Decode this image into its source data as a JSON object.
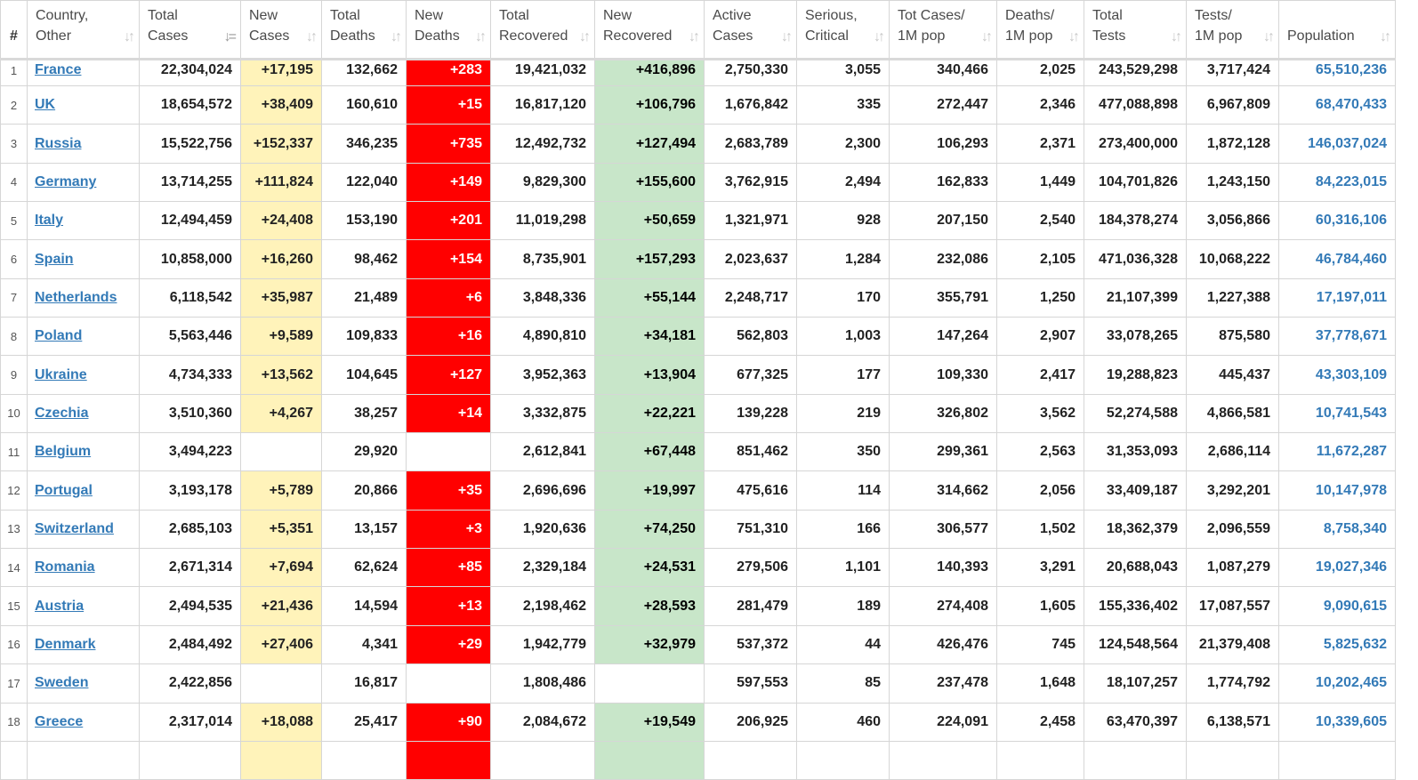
{
  "columns": [
    {
      "l1": "",
      "l2": "#"
    },
    {
      "l1": "Country,",
      "l2": "Other"
    },
    {
      "l1": "Total",
      "l2": "Cases"
    },
    {
      "l1": "New",
      "l2": "Cases"
    },
    {
      "l1": "Total",
      "l2": "Deaths"
    },
    {
      "l1": "New",
      "l2": "Deaths"
    },
    {
      "l1": "Total",
      "l2": "Recovered"
    },
    {
      "l1": "New",
      "l2": "Recovered"
    },
    {
      "l1": "Active",
      "l2": "Cases"
    },
    {
      "l1": "Serious,",
      "l2": "Critical"
    },
    {
      "l1": "Tot Cases/",
      "l2": "1M pop"
    },
    {
      "l1": "Deaths/",
      "l2": "1M pop"
    },
    {
      "l1": "Total",
      "l2": "Tests"
    },
    {
      "l1": "Tests/",
      "l2": "1M pop"
    },
    {
      "l1": "",
      "l2": "Population"
    }
  ],
  "sort_icons": {
    "default": "↓↑",
    "active": "↓="
  },
  "colors": {
    "new_cases_bg": "#fff3ba",
    "new_deaths_bg": "#ff0000",
    "new_recovered_bg": "#c8e6c9",
    "link": "#337ab7"
  },
  "rows": [
    {
      "rank": "1",
      "country": "France",
      "total_cases": "22,304,024",
      "new_cases": "+17,195",
      "total_deaths": "132,662",
      "new_deaths": "+283",
      "total_recovered": "19,421,032",
      "new_recovered": "+416,896",
      "active_cases": "2,750,330",
      "serious": "3,055",
      "cases_per_1m": "340,466",
      "deaths_per_1m": "2,025",
      "total_tests": "243,529,298",
      "tests_per_1m": "3,717,424",
      "population": "65,510,236"
    },
    {
      "rank": "2",
      "country": "UK",
      "total_cases": "18,654,572",
      "new_cases": "+38,409",
      "total_deaths": "160,610",
      "new_deaths": "+15",
      "total_recovered": "16,817,120",
      "new_recovered": "+106,796",
      "active_cases": "1,676,842",
      "serious": "335",
      "cases_per_1m": "272,447",
      "deaths_per_1m": "2,346",
      "total_tests": "477,088,898",
      "tests_per_1m": "6,967,809",
      "population": "68,470,433"
    },
    {
      "rank": "3",
      "country": "Russia",
      "total_cases": "15,522,756",
      "new_cases": "+152,337",
      "total_deaths": "346,235",
      "new_deaths": "+735",
      "total_recovered": "12,492,732",
      "new_recovered": "+127,494",
      "active_cases": "2,683,789",
      "serious": "2,300",
      "cases_per_1m": "106,293",
      "deaths_per_1m": "2,371",
      "total_tests": "273,400,000",
      "tests_per_1m": "1,872,128",
      "population": "146,037,024"
    },
    {
      "rank": "4",
      "country": "Germany",
      "total_cases": "13,714,255",
      "new_cases": "+111,824",
      "total_deaths": "122,040",
      "new_deaths": "+149",
      "total_recovered": "9,829,300",
      "new_recovered": "+155,600",
      "active_cases": "3,762,915",
      "serious": "2,494",
      "cases_per_1m": "162,833",
      "deaths_per_1m": "1,449",
      "total_tests": "104,701,826",
      "tests_per_1m": "1,243,150",
      "population": "84,223,015"
    },
    {
      "rank": "5",
      "country": "Italy",
      "total_cases": "12,494,459",
      "new_cases": "+24,408",
      "total_deaths": "153,190",
      "new_deaths": "+201",
      "total_recovered": "11,019,298",
      "new_recovered": "+50,659",
      "active_cases": "1,321,971",
      "serious": "928",
      "cases_per_1m": "207,150",
      "deaths_per_1m": "2,540",
      "total_tests": "184,378,274",
      "tests_per_1m": "3,056,866",
      "population": "60,316,106"
    },
    {
      "rank": "6",
      "country": "Spain",
      "total_cases": "10,858,000",
      "new_cases": "+16,260",
      "total_deaths": "98,462",
      "new_deaths": "+154",
      "total_recovered": "8,735,901",
      "new_recovered": "+157,293",
      "active_cases": "2,023,637",
      "serious": "1,284",
      "cases_per_1m": "232,086",
      "deaths_per_1m": "2,105",
      "total_tests": "471,036,328",
      "tests_per_1m": "10,068,222",
      "population": "46,784,460"
    },
    {
      "rank": "7",
      "country": "Netherlands",
      "total_cases": "6,118,542",
      "new_cases": "+35,987",
      "total_deaths": "21,489",
      "new_deaths": "+6",
      "total_recovered": "3,848,336",
      "new_recovered": "+55,144",
      "active_cases": "2,248,717",
      "serious": "170",
      "cases_per_1m": "355,791",
      "deaths_per_1m": "1,250",
      "total_tests": "21,107,399",
      "tests_per_1m": "1,227,388",
      "population": "17,197,011"
    },
    {
      "rank": "8",
      "country": "Poland",
      "total_cases": "5,563,446",
      "new_cases": "+9,589",
      "total_deaths": "109,833",
      "new_deaths": "+16",
      "total_recovered": "4,890,810",
      "new_recovered": "+34,181",
      "active_cases": "562,803",
      "serious": "1,003",
      "cases_per_1m": "147,264",
      "deaths_per_1m": "2,907",
      "total_tests": "33,078,265",
      "tests_per_1m": "875,580",
      "population": "37,778,671"
    },
    {
      "rank": "9",
      "country": "Ukraine",
      "total_cases": "4,734,333",
      "new_cases": "+13,562",
      "total_deaths": "104,645",
      "new_deaths": "+127",
      "total_recovered": "3,952,363",
      "new_recovered": "+13,904",
      "active_cases": "677,325",
      "serious": "177",
      "cases_per_1m": "109,330",
      "deaths_per_1m": "2,417",
      "total_tests": "19,288,823",
      "tests_per_1m": "445,437",
      "population": "43,303,109"
    },
    {
      "rank": "10",
      "country": "Czechia",
      "total_cases": "3,510,360",
      "new_cases": "+4,267",
      "total_deaths": "38,257",
      "new_deaths": "+14",
      "total_recovered": "3,332,875",
      "new_recovered": "+22,221",
      "active_cases": "139,228",
      "serious": "219",
      "cases_per_1m": "326,802",
      "deaths_per_1m": "3,562",
      "total_tests": "52,274,588",
      "tests_per_1m": "4,866,581",
      "population": "10,741,543"
    },
    {
      "rank": "11",
      "country": "Belgium",
      "total_cases": "3,494,223",
      "new_cases": "",
      "total_deaths": "29,920",
      "new_deaths": "",
      "total_recovered": "2,612,841",
      "new_recovered": "+67,448",
      "active_cases": "851,462",
      "serious": "350",
      "cases_per_1m": "299,361",
      "deaths_per_1m": "2,563",
      "total_tests": "31,353,093",
      "tests_per_1m": "2,686,114",
      "population": "11,672,287"
    },
    {
      "rank": "12",
      "country": "Portugal",
      "total_cases": "3,193,178",
      "new_cases": "+5,789",
      "total_deaths": "20,866",
      "new_deaths": "+35",
      "total_recovered": "2,696,696",
      "new_recovered": "+19,997",
      "active_cases": "475,616",
      "serious": "114",
      "cases_per_1m": "314,662",
      "deaths_per_1m": "2,056",
      "total_tests": "33,409,187",
      "tests_per_1m": "3,292,201",
      "population": "10,147,978"
    },
    {
      "rank": "13",
      "country": "Switzerland",
      "total_cases": "2,685,103",
      "new_cases": "+5,351",
      "total_deaths": "13,157",
      "new_deaths": "+3",
      "total_recovered": "1,920,636",
      "new_recovered": "+74,250",
      "active_cases": "751,310",
      "serious": "166",
      "cases_per_1m": "306,577",
      "deaths_per_1m": "1,502",
      "total_tests": "18,362,379",
      "tests_per_1m": "2,096,559",
      "population": "8,758,340"
    },
    {
      "rank": "14",
      "country": "Romania",
      "total_cases": "2,671,314",
      "new_cases": "+7,694",
      "total_deaths": "62,624",
      "new_deaths": "+85",
      "total_recovered": "2,329,184",
      "new_recovered": "+24,531",
      "active_cases": "279,506",
      "serious": "1,101",
      "cases_per_1m": "140,393",
      "deaths_per_1m": "3,291",
      "total_tests": "20,688,043",
      "tests_per_1m": "1,087,279",
      "population": "19,027,346"
    },
    {
      "rank": "15",
      "country": "Austria",
      "total_cases": "2,494,535",
      "new_cases": "+21,436",
      "total_deaths": "14,594",
      "new_deaths": "+13",
      "total_recovered": "2,198,462",
      "new_recovered": "+28,593",
      "active_cases": "281,479",
      "serious": "189",
      "cases_per_1m": "274,408",
      "deaths_per_1m": "1,605",
      "total_tests": "155,336,402",
      "tests_per_1m": "17,087,557",
      "population": "9,090,615"
    },
    {
      "rank": "16",
      "country": "Denmark",
      "total_cases": "2,484,492",
      "new_cases": "+27,406",
      "total_deaths": "4,341",
      "new_deaths": "+29",
      "total_recovered": "1,942,779",
      "new_recovered": "+32,979",
      "active_cases": "537,372",
      "serious": "44",
      "cases_per_1m": "426,476",
      "deaths_per_1m": "745",
      "total_tests": "124,548,564",
      "tests_per_1m": "21,379,408",
      "population": "5,825,632"
    },
    {
      "rank": "17",
      "country": "Sweden",
      "total_cases": "2,422,856",
      "new_cases": "",
      "total_deaths": "16,817",
      "new_deaths": "",
      "total_recovered": "1,808,486",
      "new_recovered": "",
      "active_cases": "597,553",
      "serious": "85",
      "cases_per_1m": "237,478",
      "deaths_per_1m": "1,648",
      "total_tests": "18,107,257",
      "tests_per_1m": "1,774,792",
      "population": "10,202,465"
    },
    {
      "rank": "18",
      "country": "Greece",
      "total_cases": "2,317,014",
      "new_cases": "+18,088",
      "total_deaths": "25,417",
      "new_deaths": "+90",
      "total_recovered": "2,084,672",
      "new_recovered": "+19,549",
      "active_cases": "206,925",
      "serious": "460",
      "cases_per_1m": "224,091",
      "deaths_per_1m": "2,458",
      "total_tests": "63,470,397",
      "tests_per_1m": "6,138,571",
      "population": "10,339,605"
    },
    {
      "rank": "",
      "country": "",
      "total_cases": "",
      "new_cases": "",
      "total_deaths": "",
      "new_deaths": "",
      "total_recovered": "",
      "new_recovered": "",
      "active_cases": "",
      "serious": "",
      "cases_per_1m": "",
      "deaths_per_1m": "",
      "total_tests": "",
      "tests_per_1m": "",
      "population": ""
    }
  ]
}
